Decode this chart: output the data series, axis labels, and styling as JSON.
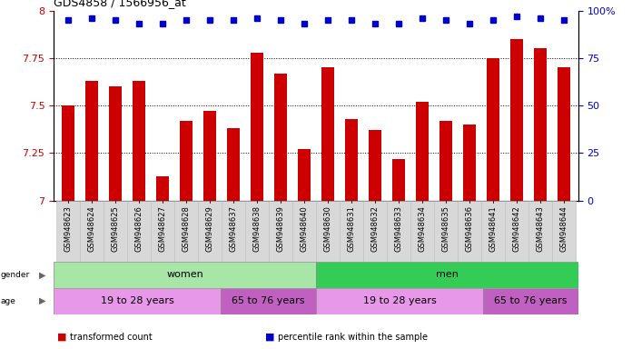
{
  "title": "GDS4858 / 1566956_at",
  "categories": [
    "GSM948623",
    "GSM948624",
    "GSM948625",
    "GSM948626",
    "GSM948627",
    "GSM948628",
    "GSM948629",
    "GSM948637",
    "GSM948638",
    "GSM948639",
    "GSM948640",
    "GSM948630",
    "GSM948631",
    "GSM948632",
    "GSM948633",
    "GSM948634",
    "GSM948635",
    "GSM948636",
    "GSM948641",
    "GSM948642",
    "GSM948643",
    "GSM948644"
  ],
  "bar_values": [
    7.5,
    7.63,
    7.6,
    7.63,
    7.13,
    7.42,
    7.47,
    7.38,
    7.78,
    7.67,
    7.27,
    7.7,
    7.43,
    7.37,
    7.22,
    7.52,
    7.42,
    7.4,
    7.75,
    7.85,
    7.8,
    7.7
  ],
  "percentile_values": [
    95,
    96,
    95,
    93,
    93,
    95,
    95,
    95,
    96,
    95,
    93,
    95,
    95,
    93,
    93,
    96,
    95,
    93,
    95,
    97,
    96,
    95
  ],
  "bar_color": "#cc0000",
  "dot_color": "#0000cc",
  "ylim_left": [
    7.0,
    8.0
  ],
  "ylim_right": [
    0,
    100
  ],
  "yticks_left": [
    7.0,
    7.25,
    7.5,
    7.75,
    8.0
  ],
  "yticks_right": [
    0,
    25,
    50,
    75,
    100
  ],
  "grid_values": [
    7.25,
    7.5,
    7.75
  ],
  "gender_groups": [
    {
      "label": "women",
      "start": 0,
      "end": 11,
      "color": "#a8e6a8"
    },
    {
      "label": "men",
      "start": 11,
      "end": 22,
      "color": "#33cc55"
    }
  ],
  "age_groups": [
    {
      "label": "19 to 28 years",
      "start": 0,
      "end": 7,
      "color": "#e898e8"
    },
    {
      "label": "65 to 76 years",
      "start": 7,
      "end": 11,
      "color": "#c060c0"
    },
    {
      "label": "19 to 28 years",
      "start": 11,
      "end": 18,
      "color": "#e898e8"
    },
    {
      "label": "65 to 76 years",
      "start": 18,
      "end": 22,
      "color": "#c060c0"
    }
  ],
  "legend_items": [
    {
      "label": "transformed count",
      "color": "#cc0000"
    },
    {
      "label": "percentile rank within the sample",
      "color": "#0000cc"
    }
  ],
  "ticklabel_bg": "#d8d8d8",
  "plot_bg_color": "#ffffff",
  "fig_bg_color": "#ffffff"
}
